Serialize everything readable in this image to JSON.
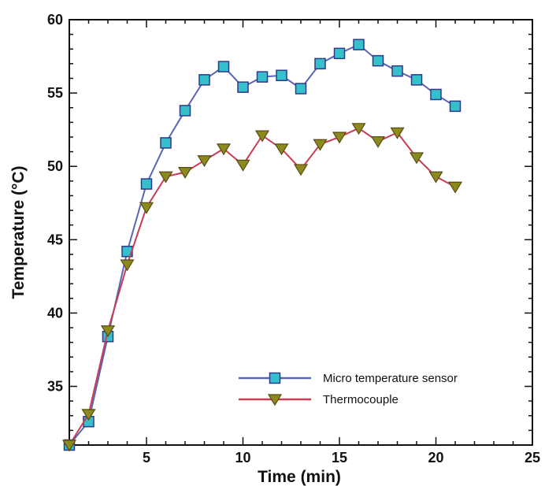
{
  "chart_data": {
    "type": "line",
    "xlabel": "Time (min)",
    "ylabel": "Temperature (°C)",
    "xlim": [
      1,
      25
    ],
    "ylim": [
      31,
      60
    ],
    "xticks": [
      5,
      10,
      15,
      20,
      25
    ],
    "yticks": [
      35,
      40,
      45,
      50,
      55,
      60
    ],
    "grid": false,
    "legend_position": "bottom-right",
    "series": [
      {
        "name": "Micro temperature sensor",
        "marker": "square",
        "line_color": "#5a64b4",
        "marker_color": "#35c0cc",
        "x": [
          1,
          2,
          3,
          4,
          5,
          6,
          7,
          8,
          9,
          10,
          11,
          12,
          13,
          14,
          15,
          16,
          17,
          18,
          19,
          20,
          21
        ],
        "values": [
          31.0,
          32.6,
          38.4,
          44.2,
          48.8,
          51.6,
          53.8,
          55.9,
          56.8,
          55.4,
          56.1,
          56.2,
          55.3,
          57.0,
          57.7,
          58.3,
          57.2,
          56.5,
          55.9,
          54.9,
          54.1
        ]
      },
      {
        "name": "Thermocouple",
        "marker": "triangle-down",
        "line_color": "#c83c55",
        "marker_color": "#8b8a1e",
        "x": [
          1,
          2,
          3,
          4,
          5,
          6,
          7,
          8,
          9,
          10,
          11,
          12,
          13,
          14,
          15,
          16,
          17,
          18,
          19,
          20,
          21
        ],
        "values": [
          31.0,
          33.1,
          38.8,
          43.3,
          47.2,
          49.3,
          49.6,
          50.4,
          51.2,
          50.1,
          52.1,
          51.2,
          49.8,
          51.5,
          52.0,
          52.6,
          51.7,
          52.3,
          50.6,
          49.3,
          48.6
        ]
      }
    ]
  }
}
